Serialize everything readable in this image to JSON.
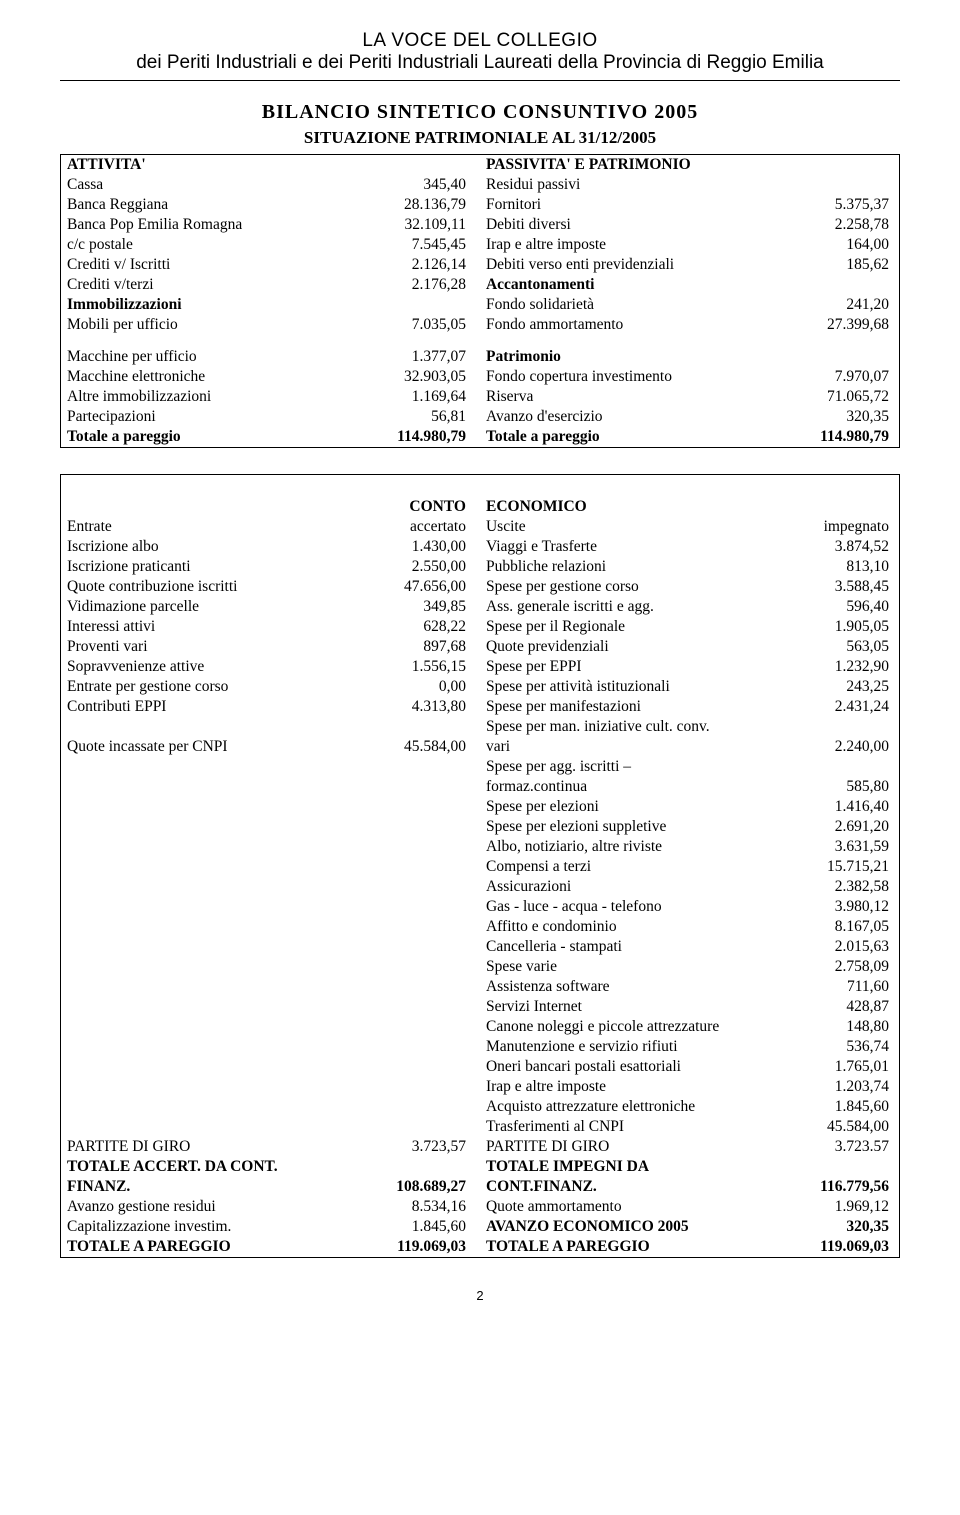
{
  "header": {
    "line1": "LA VOCE DEL COLLEGIO",
    "line2": "dei Periti Industriali e dei Periti Industriali Laureati della Provincia di Reggio Emilia"
  },
  "title": "BILANCIO SINTETICO CONSUNTIVO 2005",
  "subtitle": "SITUAZIONE PATRIMONIALE AL 31/12/2005",
  "patrimoniale": {
    "left_header": "ATTIVITA'",
    "right_header": "PASSIVITA' E PATRIMONIO",
    "rows1": [
      {
        "l": "Cassa",
        "la": "345,40",
        "r": "Residui passivi",
        "ra": ""
      },
      {
        "l": "Banca Reggiana",
        "la": "28.136,79",
        "r": "Fornitori",
        "ra": "5.375,37"
      },
      {
        "l": "Banca Pop Emilia Romagna",
        "la": "32.109,11",
        "r": "Debiti diversi",
        "ra": "2.258,78"
      },
      {
        "l": "c/c postale",
        "la": "7.545,45",
        "r": "Irap e altre imposte",
        "ra": "164,00"
      },
      {
        "l": "Crediti v/ Iscritti",
        "la": "2.126,14",
        "r": "Debiti verso enti previdenziali",
        "ra": "185,62"
      },
      {
        "l": "Crediti v/terzi",
        "la": "2.176,28",
        "r": "Accantonamenti",
        "ra": "",
        "rbold": true
      },
      {
        "l": "Immobilizzazioni",
        "la": "",
        "lbold": true,
        "r": "Fondo solidarietà",
        "ra": "241,20"
      },
      {
        "l": "Mobili per ufficio",
        "la": "7.035,05",
        "r": "Fondo ammortamento",
        "ra": "27.399,68"
      }
    ],
    "rows2": [
      {
        "l": "Macchine per ufficio",
        "la": "1.377,07",
        "r": "Patrimonio",
        "ra": "",
        "rbold": true
      },
      {
        "l": "Macchine elettroniche",
        "la": "32.903,05",
        "r": "Fondo copertura investimento",
        "ra": "7.970,07"
      },
      {
        "l": "Altre immobilizzazioni",
        "la": "1.169,64",
        "r": "Riserva",
        "ra": "71.065,72"
      },
      {
        "l": "Partecipazioni",
        "la": "56,81",
        "r": "Avanzo d'esercizio",
        "ra": "320,35"
      },
      {
        "l": "Totale a pareggio",
        "la": "114.980,79",
        "lbold": true,
        "labold": true,
        "r": "Totale a pareggio",
        "ra": "114.980,79",
        "rbold": true,
        "rabold": true
      }
    ]
  },
  "conto": {
    "left_header": "CONTO",
    "right_header": "ECONOMICO",
    "sub_left_l": "Entrate",
    "sub_left_r": "accertato",
    "sub_right_l": "Uscite",
    "sub_right_r": "impegnato",
    "rows": [
      {
        "l": "Iscrizione albo",
        "la": "1.430,00",
        "r": "Viaggi e Trasferte",
        "ra": "3.874,52"
      },
      {
        "l": "Iscrizione praticanti",
        "la": "2.550,00",
        "r": "Pubbliche relazioni",
        "ra": "813,10"
      },
      {
        "l": "Quote contribuzione iscritti",
        "la": "47.656,00",
        "r": "Spese per gestione corso",
        "ra": "3.588,45"
      },
      {
        "l": "Vidimazione parcelle",
        "la": "349,85",
        "r": "Ass. generale iscritti e agg.",
        "ra": "596,40"
      },
      {
        "l": "Interessi attivi",
        "la": "628,22",
        "r": "Spese per il Regionale",
        "ra": "1.905,05"
      },
      {
        "l": "Proventi vari",
        "la": "897,68",
        "r": "Quote previdenziali",
        "ra": "563,05"
      },
      {
        "l": "Sopravvenienze attive",
        "la": "1.556,15",
        "r": "Spese per EPPI",
        "ra": "1.232,90"
      },
      {
        "l": "Entrate per gestione corso",
        "la": "0,00",
        "r": "Spese per attività istituzionali",
        "ra": "243,25"
      },
      {
        "l": "Contributi EPPI",
        "la": "4.313,80",
        "r": "Spese per manifestazioni",
        "ra": "2.431,24"
      },
      {
        "l": "",
        "la": "",
        "r": "Spese per man. iniziative cult. conv.",
        "ra": ""
      },
      {
        "l": "Quote incassate per CNPI",
        "la": "45.584,00",
        "r": "vari",
        "ra": "2.240,00"
      },
      {
        "l": "",
        "la": "",
        "r": "Spese per agg. iscritti –",
        "ra": ""
      },
      {
        "l": "",
        "la": "",
        "r": "formaz.continua",
        "ra": "585,80"
      },
      {
        "l": "",
        "la": "",
        "r": "Spese per elezioni",
        "ra": "1.416,40"
      },
      {
        "l": "",
        "la": "",
        "r": "Spese per elezioni suppletive",
        "ra": "2.691,20"
      },
      {
        "l": "",
        "la": "",
        "r": "Albo, notiziario, altre riviste",
        "ra": "3.631,59"
      },
      {
        "l": "",
        "la": "",
        "r": "Compensi a terzi",
        "ra": "15.715,21"
      },
      {
        "l": "",
        "la": "",
        "r": "Assicurazioni",
        "ra": "2.382,58"
      },
      {
        "l": "",
        "la": "",
        "r": "Gas - luce - acqua - telefono",
        "ra": "3.980,12"
      },
      {
        "l": "",
        "la": "",
        "r": "Affitto e condominio",
        "ra": "8.167,05"
      },
      {
        "l": "",
        "la": "",
        "r": "Cancelleria - stampati",
        "ra": "2.015,63"
      },
      {
        "l": "",
        "la": "",
        "r": "Spese varie",
        "ra": "2.758,09"
      },
      {
        "l": "",
        "la": "",
        "r": "Assistenza software",
        "ra": "711,60"
      },
      {
        "l": "",
        "la": "",
        "r": "Servizi Internet",
        "ra": "428,87"
      },
      {
        "l": "",
        "la": "",
        "r": "Canone noleggi e piccole attrezzature",
        "ra": "148,80"
      },
      {
        "l": "",
        "la": "",
        "r": "Manutenzione e servizio rifiuti",
        "ra": "536,74"
      },
      {
        "l": "",
        "la": "",
        "r": "Oneri bancari postali esattoriali",
        "ra": "1.765,01"
      },
      {
        "l": "",
        "la": "",
        "r": "Irap e altre imposte",
        "ra": "1.203,74"
      },
      {
        "l": "",
        "la": "",
        "r": "Acquisto attrezzature elettroniche",
        "ra": "1.845,60"
      },
      {
        "l": "",
        "la": "",
        "r": "Trasferimenti al CNPI",
        "ra": "45.584,00"
      },
      {
        "l": "PARTITE DI GIRO",
        "la": "3.723,57",
        "r": "PARTITE DI GIRO",
        "ra": "3.723.57"
      },
      {
        "l": "TOTALE ACCERT. DA CONT.",
        "la": "",
        "lbold": true,
        "r": "TOTALE IMPEGNI DA",
        "ra": "",
        "rbold": true
      },
      {
        "l": "FINANZ.",
        "la": "108.689,27",
        "lbold": true,
        "labold": true,
        "r": "CONT.FINANZ.",
        "ra": "116.779,56",
        "rbold": true,
        "rabold": true
      },
      {
        "l": "Avanzo gestione residui",
        "la": "8.534,16",
        "r": "Quote ammortamento",
        "ra": "1.969,12"
      },
      {
        "l": "Capitalizzazione investim.",
        "la": "1.845,60",
        "r": "AVANZO ECONOMICO 2005",
        "ra": "320,35",
        "rbold": true,
        "rabold": true
      },
      {
        "l": "TOTALE A PAREGGIO",
        "la": "119.069,03",
        "lbold": true,
        "labold": true,
        "r": "TOTALE A PAREGGIO",
        "ra": "119.069,03",
        "rbold": true,
        "rabold": true
      }
    ]
  },
  "page_number": "2"
}
